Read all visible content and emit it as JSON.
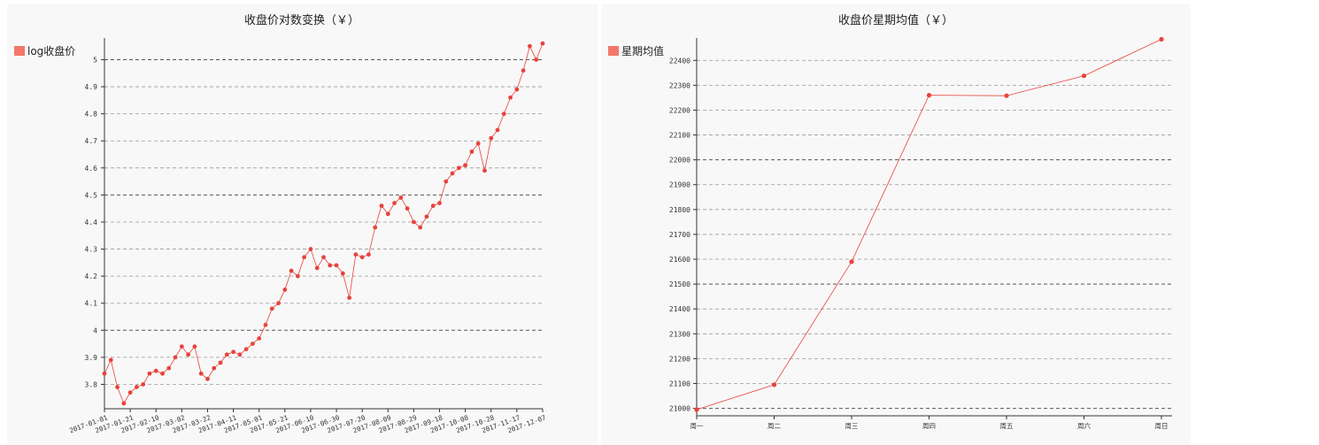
{
  "colors": {
    "series": "#e8423b",
    "legend": "#f4776b",
    "grid": "#888888",
    "axis": "#333333"
  },
  "chart_data": [
    {
      "type": "scatter",
      "title": "收盘价对数变换（￥）",
      "legend": [
        "log收盘价"
      ],
      "legend_position": "top-left",
      "grid": "horizontal-dashed",
      "ylim": [
        3.71,
        5.08
      ],
      "yticks": [
        3.8,
        3.9,
        4.0,
        4.1,
        4.2,
        4.3,
        4.4,
        4.5,
        4.6,
        4.7,
        4.8,
        4.9,
        5.0
      ],
      "ytick_labels": [
        "3.8",
        "3.9",
        "4",
        "4.1",
        "4.2",
        "4.3",
        "4.4",
        "4.5",
        "4.6",
        "4.7",
        "4.8",
        "4.9",
        "5"
      ],
      "xlim": [
        "2017-01-01",
        "2017-12-07"
      ],
      "xtick_labels": [
        "2017-01-01",
        "2017-01-21",
        "2017-02-10",
        "2017-03-02",
        "2017-03-22",
        "2017-04-11",
        "2017-05-01",
        "2017-05-21",
        "2017-06-10",
        "2017-06-30",
        "2017-07-20",
        "2017-08-09",
        "2017-08-29",
        "2017-09-18",
        "2017-10-08",
        "2017-10-28",
        "2017-11-17",
        "2017-12-07"
      ],
      "series": [
        {
          "name": "log收盘价",
          "x": [
            "2017-01-01",
            "2017-01-06",
            "2017-01-11",
            "2017-01-16",
            "2017-01-21",
            "2017-01-26",
            "2017-01-31",
            "2017-02-05",
            "2017-02-10",
            "2017-02-15",
            "2017-02-20",
            "2017-02-25",
            "2017-03-02",
            "2017-03-07",
            "2017-03-12",
            "2017-03-17",
            "2017-03-22",
            "2017-03-27",
            "2017-04-01",
            "2017-04-06",
            "2017-04-11",
            "2017-04-16",
            "2017-04-21",
            "2017-04-26",
            "2017-05-01",
            "2017-05-06",
            "2017-05-11",
            "2017-05-16",
            "2017-05-21",
            "2017-05-26",
            "2017-05-31",
            "2017-06-05",
            "2017-06-10",
            "2017-06-15",
            "2017-06-20",
            "2017-06-25",
            "2017-06-30",
            "2017-07-05",
            "2017-07-10",
            "2017-07-15",
            "2017-07-20",
            "2017-07-25",
            "2017-07-30",
            "2017-08-04",
            "2017-08-09",
            "2017-08-14",
            "2017-08-19",
            "2017-08-24",
            "2017-08-29",
            "2017-09-03",
            "2017-09-08",
            "2017-09-13",
            "2017-09-18",
            "2017-09-23",
            "2017-09-28",
            "2017-10-03",
            "2017-10-08",
            "2017-10-13",
            "2017-10-18",
            "2017-10-23",
            "2017-10-28",
            "2017-11-02",
            "2017-11-07",
            "2017-11-12",
            "2017-11-17",
            "2017-11-22",
            "2017-11-27",
            "2017-12-02",
            "2017-12-07"
          ],
          "values": [
            3.84,
            3.89,
            3.79,
            3.73,
            3.77,
            3.79,
            3.8,
            3.84,
            3.85,
            3.84,
            3.86,
            3.9,
            3.94,
            3.91,
            3.94,
            3.84,
            3.82,
            3.86,
            3.88,
            3.91,
            3.92,
            3.91,
            3.93,
            3.95,
            3.97,
            4.02,
            4.08,
            4.1,
            4.15,
            4.22,
            4.2,
            4.27,
            4.3,
            4.23,
            4.27,
            4.24,
            4.24,
            4.21,
            4.12,
            4.28,
            4.27,
            4.28,
            4.38,
            4.46,
            4.43,
            4.47,
            4.49,
            4.45,
            4.4,
            4.38,
            4.42,
            4.46,
            4.47,
            4.55,
            4.58,
            4.6,
            4.61,
            4.66,
            4.69,
            4.59,
            4.71,
            4.74,
            4.8,
            4.86,
            4.89,
            4.96,
            5.05,
            5.0,
            5.06
          ]
        }
      ]
    },
    {
      "type": "line",
      "title": "收盘价星期均值（￥）",
      "legend": [
        "星期均值"
      ],
      "legend_position": "top-left",
      "grid": "horizontal-dashed",
      "categories": [
        "周一",
        "周二",
        "周三",
        "周四",
        "周五",
        "周六",
        "周日"
      ],
      "ylim": [
        20970,
        22490
      ],
      "yticks": [
        21000,
        21100,
        21200,
        21300,
        21400,
        21500,
        21600,
        21700,
        21800,
        21900,
        22000,
        22100,
        22200,
        22300,
        22400
      ],
      "ytick_labels": [
        "21000",
        "21100",
        "21200",
        "21300",
        "21400",
        "21500",
        "21600",
        "21700",
        "21800",
        "21900",
        "22000",
        "22100",
        "22200",
        "22300",
        "22400"
      ],
      "series": [
        {
          "name": "星期均值",
          "values": [
            20995,
            21095,
            21590,
            22260,
            22258,
            22338,
            22485
          ]
        }
      ]
    }
  ]
}
